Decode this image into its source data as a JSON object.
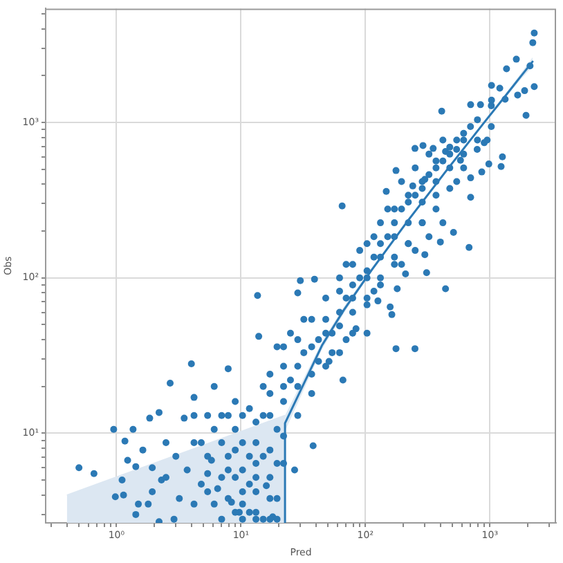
{
  "chart_data": {
    "type": "scatter",
    "xlabel": "Pred",
    "ylabel": "Obs",
    "log": "xy",
    "xlim": [
      0.27,
      3400
    ],
    "ylim": [
      2.65,
      5400
    ],
    "xticks": [
      {
        "value": 0.3,
        "label": null
      },
      {
        "value": 0.4,
        "label": null
      },
      {
        "value": 0.5,
        "label": null
      },
      {
        "value": 0.6,
        "label": null
      },
      {
        "value": 0.7,
        "label": null
      },
      {
        "value": 0.8,
        "label": null
      },
      {
        "value": 0.9,
        "label": null
      },
      {
        "value": 1,
        "label": "10⁰"
      },
      {
        "value": 2,
        "label": null
      },
      {
        "value": 3,
        "label": null
      },
      {
        "value": 4,
        "label": null
      },
      {
        "value": 5,
        "label": null
      },
      {
        "value": 6,
        "label": null
      },
      {
        "value": 7,
        "label": null
      },
      {
        "value": 8,
        "label": null
      },
      {
        "value": 9,
        "label": null
      },
      {
        "value": 10,
        "label": "10¹"
      },
      {
        "value": 20,
        "label": null
      },
      {
        "value": 30,
        "label": null
      },
      {
        "value": 40,
        "label": null
      },
      {
        "value": 50,
        "label": null
      },
      {
        "value": 60,
        "label": null
      },
      {
        "value": 70,
        "label": null
      },
      {
        "value": 80,
        "label": null
      },
      {
        "value": 90,
        "label": null
      },
      {
        "value": 100,
        "label": "10²"
      },
      {
        "value": 200,
        "label": null
      },
      {
        "value": 300,
        "label": null
      },
      {
        "value": 400,
        "label": null
      },
      {
        "value": 500,
        "label": null
      },
      {
        "value": 600,
        "label": null
      },
      {
        "value": 700,
        "label": null
      },
      {
        "value": 800,
        "label": null
      },
      {
        "value": 900,
        "label": null
      },
      {
        "value": 1000,
        "label": "10³"
      },
      {
        "value": 2000,
        "label": null
      },
      {
        "value": 3000,
        "label": null
      }
    ],
    "yticks": [
      {
        "value": 3,
        "label": null
      },
      {
        "value": 4,
        "label": null
      },
      {
        "value": 5,
        "label": null
      },
      {
        "value": 6,
        "label": null
      },
      {
        "value": 7,
        "label": null
      },
      {
        "value": 8,
        "label": null
      },
      {
        "value": 9,
        "label": null
      },
      {
        "value": 10,
        "label": "10¹"
      },
      {
        "value": 20,
        "label": null
      },
      {
        "value": 30,
        "label": null
      },
      {
        "value": 40,
        "label": null
      },
      {
        "value": 50,
        "label": null
      },
      {
        "value": 60,
        "label": null
      },
      {
        "value": 70,
        "label": null
      },
      {
        "value": 80,
        "label": null
      },
      {
        "value": 90,
        "label": null
      },
      {
        "value": 100,
        "label": "10²"
      },
      {
        "value": 200,
        "label": null
      },
      {
        "value": 300,
        "label": null
      },
      {
        "value": 400,
        "label": null
      },
      {
        "value": 500,
        "label": null
      },
      {
        "value": 600,
        "label": null
      },
      {
        "value": 700,
        "label": null
      },
      {
        "value": 800,
        "label": null
      },
      {
        "value": 900,
        "label": null
      },
      {
        "value": 1000,
        "label": "10³"
      },
      {
        "value": 2000,
        "label": null
      },
      {
        "value": 3000,
        "label": null
      },
      {
        "value": 4000,
        "label": null
      },
      {
        "value": 5000,
        "label": null
      }
    ],
    "grid": true,
    "marker": "circle",
    "series": [
      {
        "color": "#2b79b5",
        "x": [
          2270,
          2210,
          1630,
          1360,
          2100,
          2270,
          1030,
          1200,
          1670,
          1900,
          1950,
          410,
          700,
          840,
          1030,
          250,
          290,
          350,
          440,
          540,
          900,
          950,
          1260,
          1230,
          980,
          176,
          790,
          580,
          147,
          240,
          300,
          860,
          700,
          65,
          700,
          510,
          680,
          400,
          300,
          210,
          310,
          440,
          180,
          158,
          163,
          126,
          176,
          250,
          13.6,
          30,
          39,
          28.6,
          13.9,
          4.0,
          2.7,
          6.1,
          7.9,
          66,
          51,
          84,
          103,
          4.2,
          0.95,
          1.36,
          1.17,
          1.85,
          2.2,
          3.5,
          0.5,
          0.66,
          1.11,
          0.98,
          1.14,
          1.43,
          1.8,
          2.2,
          2.9,
          27,
          38,
          16,
          18,
          1.23,
          1.43,
          1.63,
          1.94,
          2.3,
          3.0,
          5.4,
          5.8,
          6.5,
          8.4,
          9.7,
          7.9,
          9.0,
          10.3,
          11.7,
          13.2,
          10.3,
          11.7,
          15.1,
          7.0,
          9.0,
          11.7,
          15.1,
          17.1,
          19.5,
          13.2,
          19.5,
          17.1,
          22,
          25,
          28.6,
          22,
          32,
          37,
          42,
          54,
          48,
          62,
          70,
          79,
          90,
          103,
          117,
          132,
          151,
          171,
          195,
          221,
          251,
          286,
          324,
          369,
          419,
          476,
          541,
          615,
          698,
          79,
          103,
          132,
          171,
          221,
          286,
          369,
          54,
          42,
          70,
          15.1,
          19.5,
          25,
          32,
          7.0,
          5.4,
          4.8,
          4.2,
          3.2,
          6.1,
          117,
          90,
          70,
          62,
          151,
          195,
          251,
          324,
          419,
          117,
          195,
          251,
          324,
          419,
          541,
          615,
          9.0,
          7.9,
          13.2,
          10.3,
          5.4,
          4.2,
          2.5,
          1.94,
          1.5,
          2.5,
          7.9,
          7.9,
          10.3,
          10.3,
          10.3,
          13.2,
          13.2,
          13.2,
          17.1,
          17.1,
          17.1,
          17.1,
          22,
          22,
          22,
          22,
          28.6,
          28.6,
          28.6,
          37,
          37,
          37,
          48,
          48,
          48,
          62,
          62,
          62,
          79,
          79,
          79,
          103,
          103,
          103,
          132,
          132,
          132,
          171,
          171,
          171,
          221,
          221,
          221,
          286,
          286,
          286,
          369,
          369,
          369,
          476,
          476,
          476,
          615,
          615,
          794,
          794,
          1026,
          1026,
          1325,
          5.4,
          6.1,
          7.0,
          9.0,
          11.7,
          15.1,
          17.1,
          13.2,
          9.0,
          7.0,
          4.8,
          3.7,
          4.2,
          19.5,
          19.5
        ],
        "values": [
          3760,
          3260,
          2550,
          2210,
          2310,
          1700,
          1730,
          1660,
          1500,
          1600,
          1110,
          1180,
          1300,
          1300,
          1390,
          680,
          710,
          680,
          650,
          670,
          740,
          770,
          600,
          520,
          540,
          490,
          670,
          570,
          360,
          390,
          430,
          480,
          440,
          290,
          330,
          196,
          157,
          170,
          141,
          106,
          108,
          85,
          85,
          65,
          58,
          71,
          35,
          35,
          77,
          96,
          98,
          80,
          42,
          28,
          21,
          20,
          26,
          22,
          29,
          47,
          44,
          17,
          10.6,
          10.6,
          8.9,
          12.5,
          13.6,
          12.5,
          6.0,
          5.5,
          5.0,
          3.9,
          4.0,
          3.0,
          3.5,
          2.7,
          2.8,
          5.8,
          8.3,
          4.6,
          2.9,
          6.7,
          6.1,
          7.8,
          6.0,
          5.0,
          7.1,
          5.5,
          6.7,
          4.4,
          3.6,
          3.1,
          13,
          10.6,
          8.7,
          7.1,
          5.2,
          4.2,
          3.1,
          2.8,
          2.8,
          16,
          14.4,
          13,
          18,
          10.6,
          8.7,
          6.4,
          3.8,
          16,
          22,
          27,
          27,
          33,
          24,
          40,
          44,
          54,
          60,
          74,
          90,
          100,
          111,
          136,
          166,
          184,
          226,
          277,
          307,
          340,
          376,
          461,
          510,
          565,
          625,
          770,
          850,
          940,
          60,
          74,
          100,
          136,
          166,
          226,
          277,
          33,
          29,
          40,
          20,
          36,
          44,
          54,
          8.7,
          7.1,
          4.7,
          3.5,
          3.8,
          10.6,
          184,
          150,
          122,
          100,
          277,
          416,
          510,
          625,
          770,
          82,
          122,
          150,
          184,
          226,
          416,
          510,
          5.2,
          7.1,
          4.2,
          2.8,
          13,
          8.7,
          8.7,
          4.2,
          3.5,
          5.2,
          5.8,
          3.8,
          13,
          5.8,
          3.5,
          11.8,
          6.4,
          3.1,
          24,
          13,
          7.8,
          5.2,
          36,
          20,
          9.6,
          6.4,
          40,
          20,
          13,
          54,
          36,
          18,
          74,
          44,
          27,
          82,
          49,
          33,
          122,
          74,
          44,
          166,
          100,
          67,
          226,
          136,
          90,
          277,
          184,
          122,
          340,
          226,
          166,
          416,
          307,
          226,
          565,
          416,
          340,
          693,
          510,
          376,
          770,
          625,
          1040,
          770,
          1280,
          940,
          1410,
          4.2,
          3.5,
          5.2,
          3.1,
          4.7,
          7.1,
          2.8,
          2.8,
          7.8,
          13,
          8.7,
          5.8,
          13,
          3.8,
          2.8
        ]
      },
      {
        "type": "area",
        "color": "#dce7f2",
        "marker": "none",
        "x": [
          0.4,
          22.6
        ],
        "values": [
          4.0,
          13
        ]
      },
      {
        "type": "line",
        "color": "#2b79b5",
        "marker": "none",
        "x": [
          22.6,
          22.6,
          45,
          67,
          112,
          223,
          445,
          890,
          1330,
          1780,
          2200
        ],
        "values": [
          2.65,
          11.6,
          37,
          62,
          112,
          237,
          487,
          988,
          1480,
          1990,
          2460
        ],
        "lower": [
          null,
          10.3,
          35,
          59,
          109,
          231,
          476,
          968,
          1440,
          1900,
          2300
        ],
        "upper": [
          null,
          13,
          39,
          65,
          116,
          243,
          498,
          1008,
          1520,
          2080,
          2620
        ]
      }
    ]
  }
}
